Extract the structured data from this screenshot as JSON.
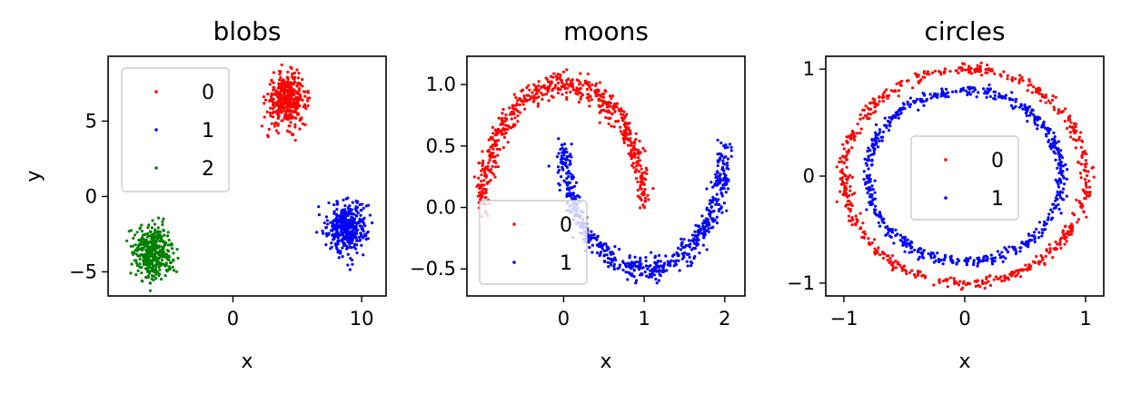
{
  "chart_data": [
    {
      "type": "scatter",
      "title": "blobs",
      "xlabel": "x",
      "ylabel": "y",
      "xlim": [
        -9.7,
        11.9
      ],
      "ylim": [
        -6.6,
        9.3
      ],
      "xticks": [
        0,
        10
      ],
      "yticks": [
        -5,
        0,
        5
      ],
      "legend": "upper-left",
      "series": [
        {
          "name": "0",
          "color": "#ff0000",
          "shape": "blob",
          "center": [
            4.2,
            6.4
          ],
          "spread": [
            0.75,
            0.85
          ],
          "n": 400
        },
        {
          "name": "1",
          "color": "#0000ff",
          "shape": "blob",
          "center": [
            8.9,
            -2.0
          ],
          "spread": [
            0.75,
            0.85
          ],
          "n": 400
        },
        {
          "name": "2",
          "color": "#008000",
          "shape": "blob",
          "center": [
            -6.2,
            -3.7
          ],
          "spread": [
            0.75,
            0.85
          ],
          "n": 400
        }
      ]
    },
    {
      "type": "scatter",
      "title": "moons",
      "xlabel": "x",
      "ylabel": "",
      "xlim": [
        -1.2,
        2.25
      ],
      "ylim": [
        -0.72,
        1.23
      ],
      "xticks": [
        0,
        1,
        2
      ],
      "yticks": [
        -0.5,
        0.0,
        0.5,
        1.0
      ],
      "ytick_labels": [
        "−0.5",
        "0.0",
        "0.5",
        "1.0"
      ],
      "legend": "lower-left",
      "series": [
        {
          "name": "0",
          "color": "#ff0000",
          "shape": "upper-moon",
          "noise": 0.05,
          "n": 600
        },
        {
          "name": "1",
          "color": "#0000ff",
          "shape": "lower-moon",
          "noise": 0.05,
          "n": 600
        }
      ]
    },
    {
      "type": "scatter",
      "title": "circles",
      "xlabel": "x",
      "ylabel": "",
      "xlim": [
        -1.15,
        1.15
      ],
      "ylim": [
        -1.12,
        1.12
      ],
      "xticks": [
        -1,
        0,
        1
      ],
      "yticks": [
        -1,
        0,
        1
      ],
      "legend": "center",
      "series": [
        {
          "name": "0",
          "color": "#ff0000",
          "shape": "circle",
          "radius": 1.0,
          "noise": 0.025,
          "n": 600
        },
        {
          "name": "1",
          "color": "#0000ff",
          "shape": "circle",
          "radius": 0.8,
          "noise": 0.025,
          "n": 600
        }
      ]
    }
  ]
}
